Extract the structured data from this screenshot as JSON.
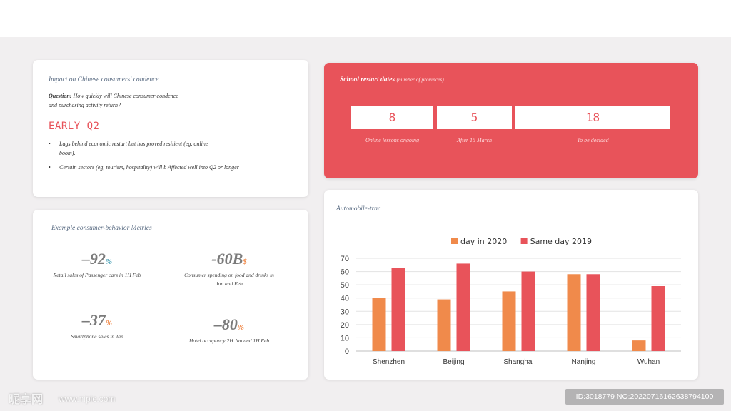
{
  "card1": {
    "title": "Impact on Chinese consumers' condence",
    "question_label": "Question:",
    "question_text": "How quickly will Chinese consumer condence and purchasing activity return?",
    "headline": "EARLY Q2",
    "bullets": [
      "Lags behind economic restart but has proved resilient (eg, online boom).",
      "Certain sectors (eg, tourism, hospitality) will b Affected well into Q2 or longer"
    ]
  },
  "card2": {
    "title": "Example consumer-behavior Metrics",
    "metrics": [
      {
        "value": "–92",
        "unit": "%",
        "caption": "Retail sales of Passenger cars in 1H Feb"
      },
      {
        "value": "-60B",
        "unit": "$",
        "caption": "Consumer spending on food and drinks in Jan and Feb"
      },
      {
        "value": "–37",
        "unit": "%",
        "caption": "Smartphone sales in Jan"
      },
      {
        "value": "–80",
        "unit": "%",
        "caption": "Hotel occupancy 2H Jan and 1H Feb"
      }
    ]
  },
  "card3": {
    "title": "School restart dates",
    "subtitle": "(number of provinces)",
    "boxes": [
      {
        "value": "8",
        "caption": "Online lessons ongoing"
      },
      {
        "value": "5",
        "caption": "After 15 March"
      },
      {
        "value": "18",
        "caption": "To be decided"
      }
    ],
    "accent_color": "#e8535a"
  },
  "card4": {
    "title": "Automobile-trac"
  },
  "chart_data": {
    "type": "bar",
    "categories": [
      "Shenzhen",
      "Beijing",
      "Shanghai",
      "Nanjing",
      "Wuhan"
    ],
    "series": [
      {
        "name": "day in 2020",
        "values": [
          40,
          39,
          45,
          58,
          8
        ],
        "color": "#f08a4b"
      },
      {
        "name": "Same day 2019",
        "values": [
          63,
          66,
          60,
          58,
          49
        ],
        "color": "#e8535a"
      }
    ],
    "ylim": [
      0,
      70
    ],
    "yticks": [
      0,
      10,
      20,
      30,
      40,
      50,
      60,
      70
    ],
    "grid": true,
    "legend": "top"
  },
  "watermark": {
    "left": "昵享网",
    "site": "www.nipic.com",
    "id_text": "ID:3018779 NO:20220716162638794100"
  }
}
